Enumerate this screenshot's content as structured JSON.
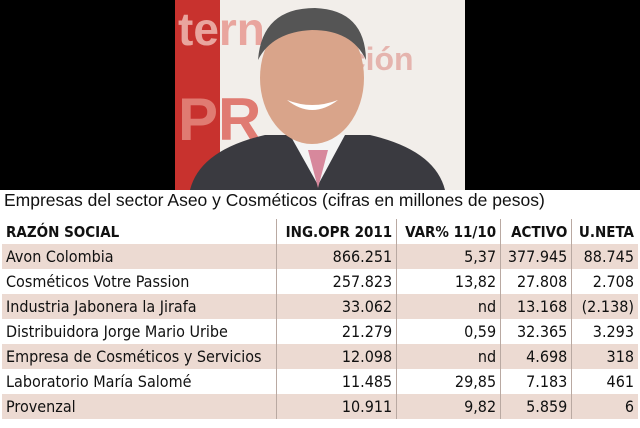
{
  "title": "Empresas del sector Aseo y Cosméticos (cifras en millones de pesos)",
  "table": {
    "header": [
      "RAZÓN SOCIAL",
      "ING.OPR 2011",
      "VAR% 11/10",
      "ACTIVO",
      "U.NETA"
    ],
    "rows": [
      [
        "Avon Colombia",
        "866.251",
        "5,37",
        "377.945",
        "88.745"
      ],
      [
        "Cosméticos Votre Passion",
        "257.823",
        "13,82",
        "27.808",
        "2.708"
      ],
      [
        "Industria Jabonera la Jirafa",
        "33.062",
        "nd",
        "13.168",
        "(2.138)"
      ],
      [
        "Distribuidora Jorge Mario Uribe",
        "21.279",
        "0,59",
        "32.365",
        "3.293"
      ],
      [
        "Empresa de Cosméticos y Servicios",
        "12.098",
        "nd",
        "4.698",
        "318"
      ],
      [
        "Laboratorio María Salomé",
        "11.485",
        "29,85",
        "7.183",
        "461"
      ],
      [
        "Provenzal",
        "10.911",
        "9,82",
        "5.859",
        "6"
      ]
    ]
  }
}
